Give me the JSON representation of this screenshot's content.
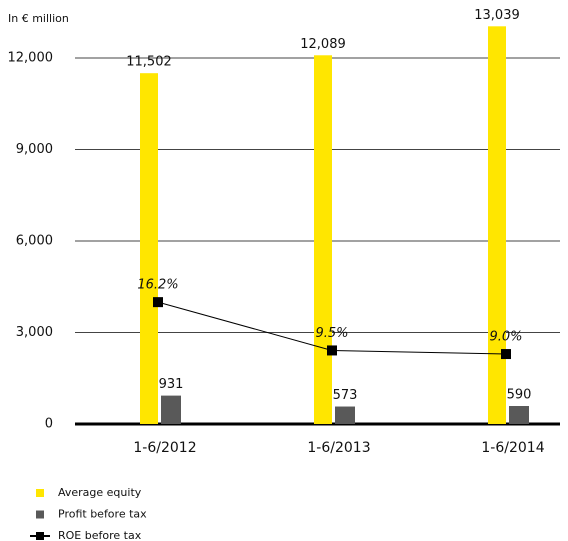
{
  "chart_data": {
    "type": "bar",
    "y_axis_label": "In € million",
    "categories": [
      "1-6/2012",
      "1-6/2013",
      "1-6/2014"
    ],
    "series": [
      {
        "name": "Average equity",
        "type": "bar",
        "color": "#ffe600",
        "values": [
          11502,
          12089,
          13039
        ],
        "value_labels": [
          "11,502",
          "12,089",
          "13,039"
        ]
      },
      {
        "name": "Profit before tax",
        "type": "bar",
        "color": "#595959",
        "values": [
          931,
          573,
          590
        ]
      },
      {
        "name": "ROE before tax",
        "type": "line",
        "axis": "y2",
        "color": "#000000",
        "values": [
          16.2,
          9.5,
          9.0
        ],
        "value_labels": [
          "16.2%",
          "9.5%",
          "9.0%"
        ]
      }
    ],
    "ylim": [
      0,
      13500
    ],
    "yticks": [
      0,
      {
        "value": 3000,
        "label": "3,000"
      },
      {
        "value": 6000,
        "label": "6,000"
      },
      {
        "value": 9000,
        "label": "9,000"
      },
      {
        "value": 12000,
        "label": "12,000"
      }
    ],
    "y2lim": [
      -0.7,
      56.4
    ],
    "grid": true,
    "legend": "bottom-left"
  }
}
